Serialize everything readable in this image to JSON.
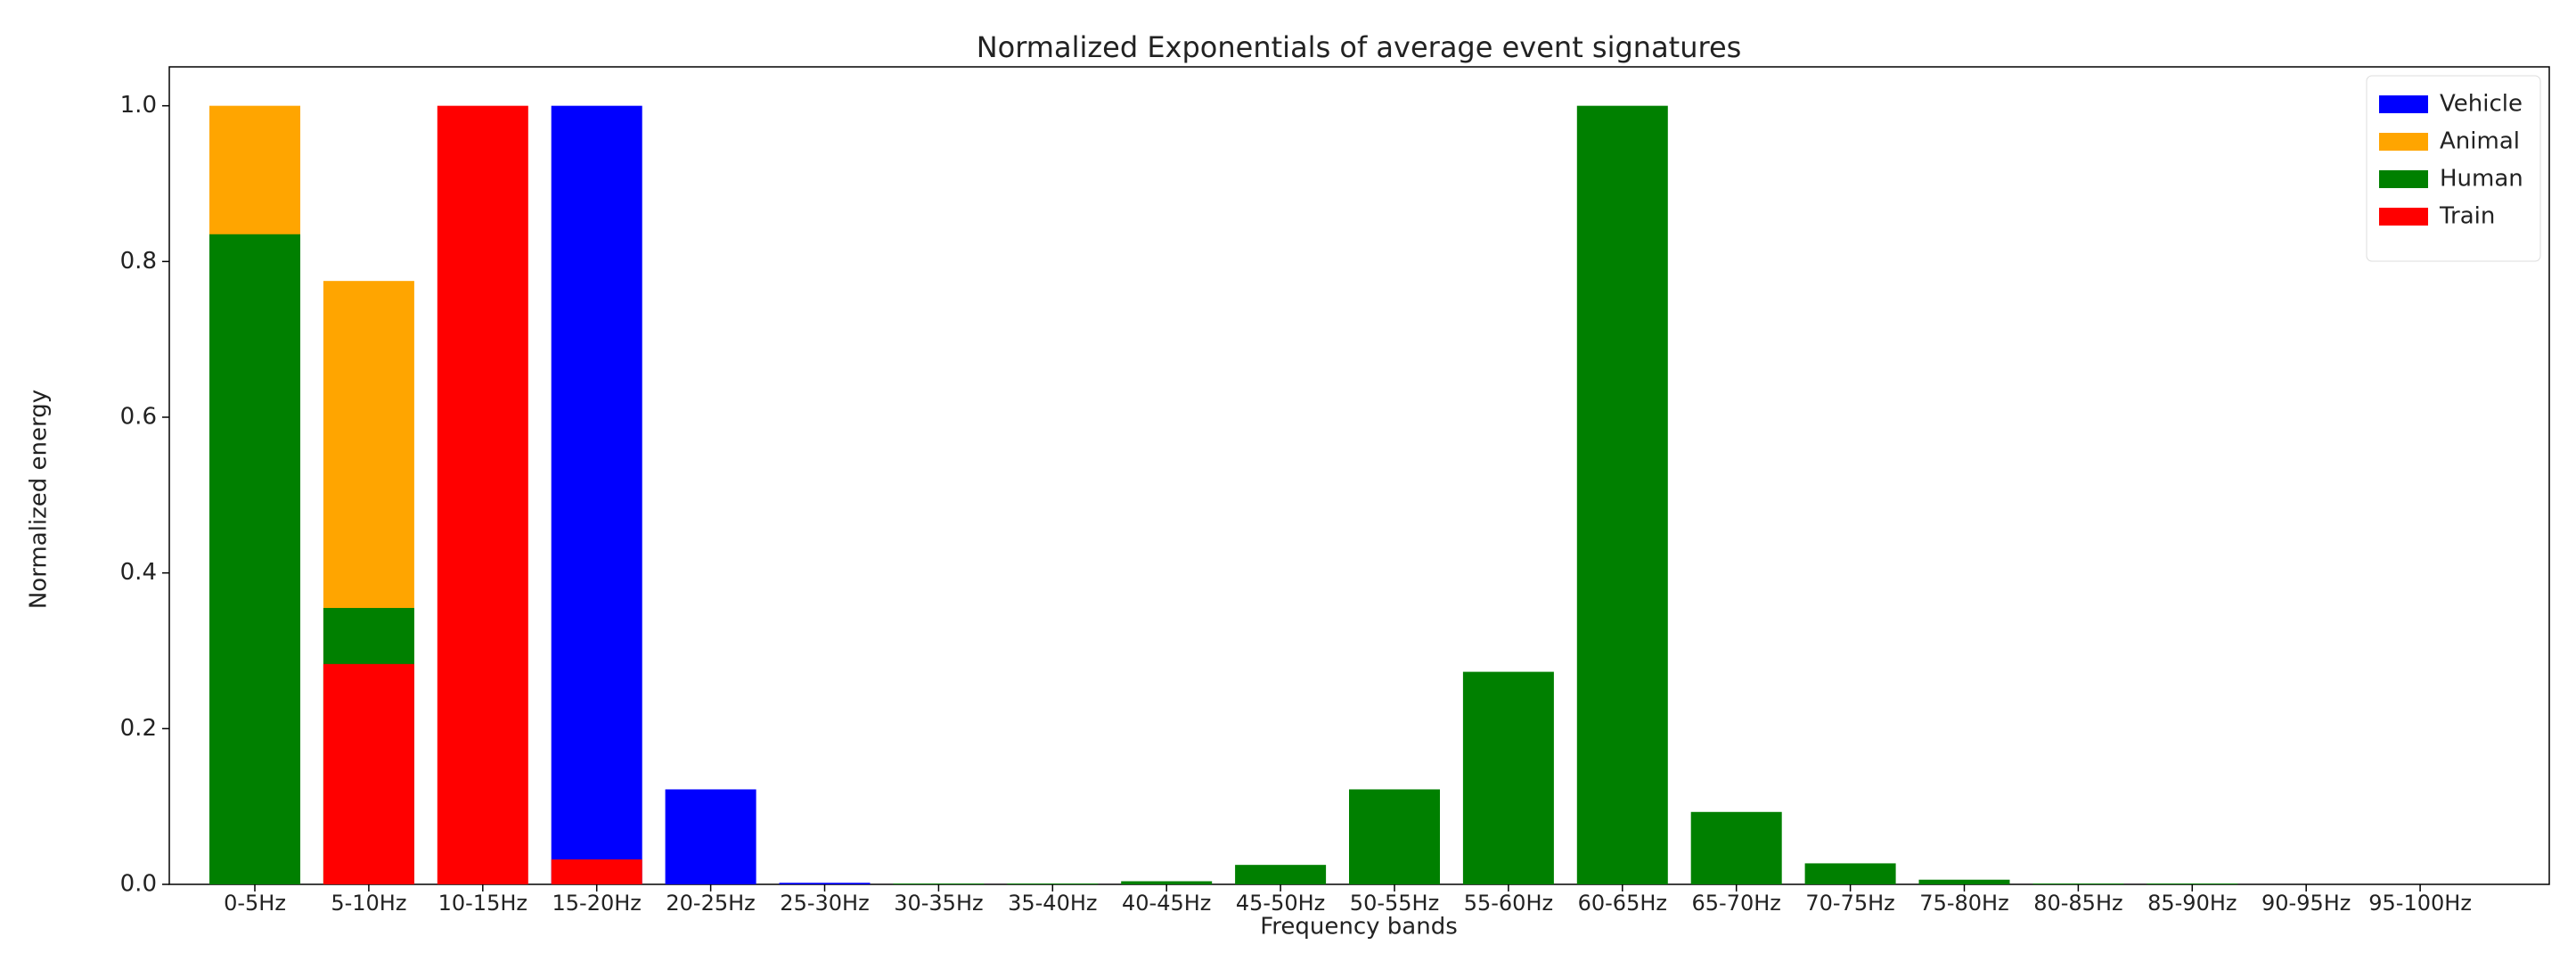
{
  "chart_data": {
    "type": "bar",
    "title": "Normalized Exponentials of average event signatures",
    "x_label": "Frequency bands",
    "y_label": "Normalized energy",
    "categories": [
      "0-5Hz",
      "5-10Hz",
      "10-15Hz",
      "15-20Hz",
      "20-25Hz",
      "25-30Hz",
      "30-35Hz",
      "35-40Hz",
      "40-45Hz",
      "45-50Hz",
      "50-55Hz",
      "55-60Hz",
      "60-65Hz",
      "65-70Hz",
      "70-75Hz",
      "75-80Hz",
      "80-85Hz",
      "85-90Hz",
      "90-95Hz",
      "95-100Hz"
    ],
    "series": [
      {
        "name": "Vehicle",
        "color": "#0000ff",
        "values": [
          0,
          0,
          0,
          1.0,
          0.122,
          0.002,
          0,
          0,
          0,
          0,
          0,
          0,
          0,
          0,
          0,
          0,
          0,
          0,
          0,
          0
        ]
      },
      {
        "name": "Animal",
        "color": "#ffa500",
        "values": [
          1.0,
          0.775,
          0,
          0,
          0,
          0,
          0,
          0,
          0,
          0,
          0,
          0,
          0,
          0,
          0,
          0,
          0,
          0,
          0,
          0
        ]
      },
      {
        "name": "Human",
        "color": "#008000",
        "values": [
          0.835,
          0.355,
          0,
          0,
          0,
          0,
          0.001,
          0.001,
          0.004,
          0.025,
          0.122,
          0.273,
          1.0,
          0.093,
          0.027,
          0.006,
          0.001,
          0.001,
          0,
          0
        ]
      },
      {
        "name": "Train",
        "color": "#ff0000",
        "values": [
          0,
          0.283,
          1.0,
          0.032,
          0,
          0,
          0,
          0,
          0,
          0,
          0,
          0,
          0,
          0,
          0,
          0,
          0,
          0,
          0,
          0
        ]
      }
    ],
    "ylim": [
      0,
      1.05
    ],
    "yticks": [
      {
        "value": 0,
        "label": "0.0"
      },
      {
        "value": 0.2,
        "label": "0.2"
      },
      {
        "value": 0.4,
        "label": "0.4"
      },
      {
        "value": 0.6,
        "label": "0.6"
      },
      {
        "value": 0.8,
        "label": "0.8"
      },
      {
        "value": 1.0,
        "label": "1.0"
      }
    ],
    "legend": "upper right",
    "grid": false
  }
}
